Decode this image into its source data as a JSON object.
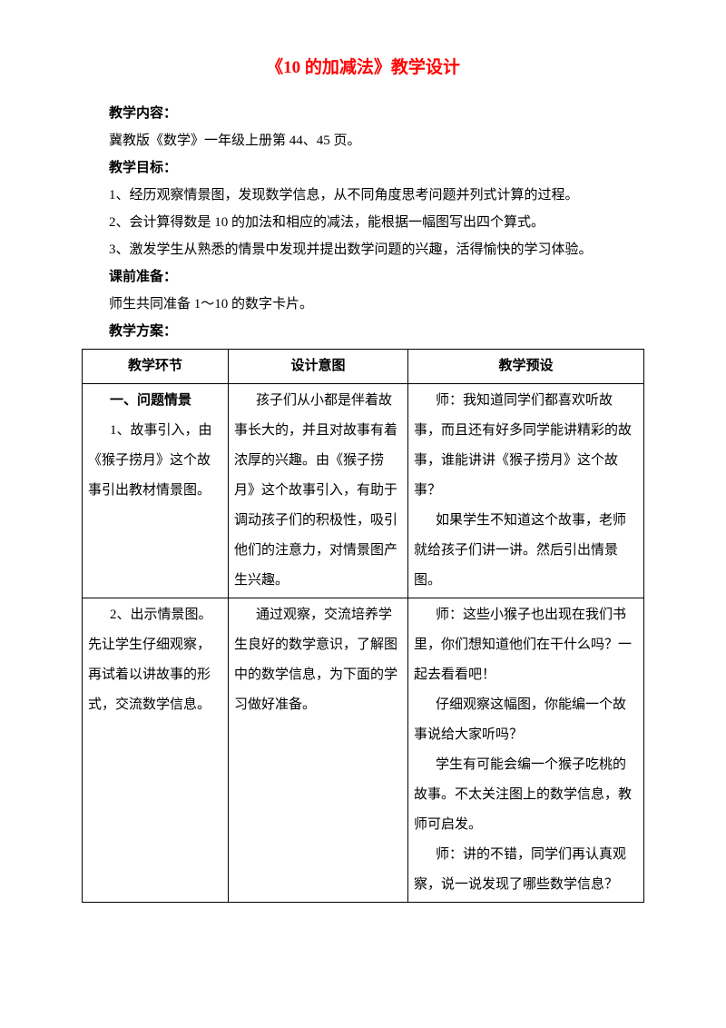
{
  "title": "《10 的加减法》教学设计",
  "labels": {
    "content": "教学内容：",
    "goals": "教学目标：",
    "prep": "课前准备：",
    "plan": "教学方案："
  },
  "content_text": "冀教版《数学》一年级上册第 44、45 页。",
  "goals": [
    "1、经历观察情景图，发现数学信息，从不同角度思考问题并列式计算的过程。",
    "2、会计算得数是 10 的加法和相应的减法，能根据一幅图写出四个算式。",
    "3、激发学生从熟悉的情景中发现并提出数学问题的兴趣，活得愉快的学习体验。"
  ],
  "prep_text": "师生共同准备 1～10 的数字卡片。",
  "table": {
    "headers": [
      "教学环节",
      "设计意图",
      "教学预设"
    ],
    "rows": [
      {
        "col1": [
          {
            "text": "一、问题情景",
            "bold": true,
            "indent": true
          },
          {
            "text": "1、故事引入，由《猴子捞月》这个故事引出教材情景图。",
            "indent": true
          }
        ],
        "col2": [
          {
            "text": "孩子们从小都是伴着故事长大的，并且对故事有着浓厚的兴趣。由《猴子捞月》这个故事引入，有助于调动孩子们的积极性，吸引他们的注意力，对情景图产生兴趣。",
            "indent": true
          }
        ],
        "col3": [
          {
            "text": "师：我知道同学们都喜欢听故事，而且还有好多同学能讲精彩的故事，谁能讲讲《猴子捞月》这个故事？",
            "indent": true
          },
          {
            "text": "如果学生不知道这个故事，老师就给孩子们讲一讲。然后引出情景图。",
            "indent": true
          }
        ]
      },
      {
        "col1": [
          {
            "text": "2、出示情景图。先让学生仔细观察，再试着以讲故事的形式，交流数学信息。",
            "indent": true
          }
        ],
        "col2": [
          {
            "text": "通过观察，交流培养学生良好的数学意识，了解图中的数学信息，为下面的学习做好准备。",
            "indent": true
          }
        ],
        "col3": [
          {
            "text": "师：这些小猴子也出现在我们书里，你们想知道他们在干什么吗？一起去看看吧！",
            "indent": true
          },
          {
            "text": "仔细观察这幅图，你能编一个故事说给大家听吗？",
            "indent": true
          },
          {
            "text": "学生有可能会编一个猴子吃桃的故事。不太关注图上的数学信息，教师可启发。",
            "indent": true
          },
          {
            "text": "师：讲的不错，同学们再认真观察，说一说发现了哪些数学信息？",
            "indent": true
          }
        ]
      }
    ]
  }
}
